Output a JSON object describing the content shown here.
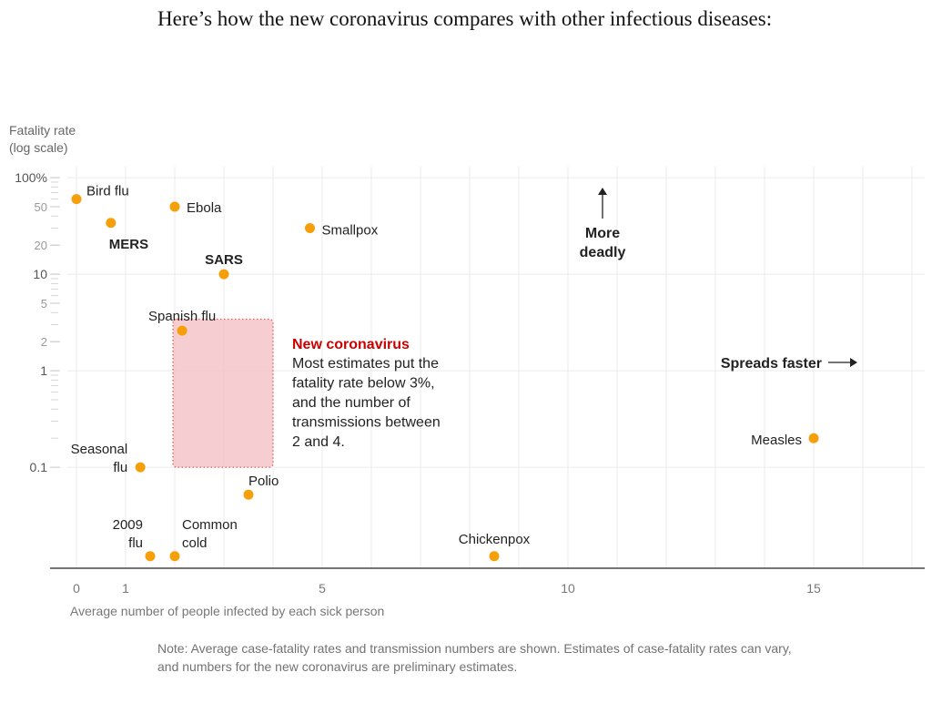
{
  "headline": "Here’s how the new coronavirus compares with other infectious diseases:",
  "note": "Note: Average case-fatality rates and transmission numbers are shown. Estimates of case-fatality rates can vary, and numbers for the new coronavirus are preliminary estimates.",
  "chart_data": {
    "type": "scatter",
    "ylabel_lines": [
      "Fatality rate",
      "(log scale)"
    ],
    "xlabel": "Average number of people infected by each sick person",
    "y_scale": "log",
    "ylim": [
      0.009,
      130
    ],
    "xlim": [
      -0.5,
      17.3
    ],
    "y_ticks": [
      {
        "value": 100,
        "label": "100%"
      },
      {
        "value": 50,
        "label": "50"
      },
      {
        "value": 20,
        "label": "20"
      },
      {
        "value": 10,
        "label": "10"
      },
      {
        "value": 5,
        "label": "5"
      },
      {
        "value": 2,
        "label": "2"
      },
      {
        "value": 1,
        "label": "1"
      },
      {
        "value": 0.1,
        "label": "0.1"
      }
    ],
    "x_ticks": [
      {
        "value": 0,
        "label": "0"
      },
      {
        "value": 1,
        "label": "1"
      },
      {
        "value": 5,
        "label": "5"
      },
      {
        "value": 10,
        "label": "10"
      },
      {
        "value": 15,
        "label": "15"
      }
    ],
    "points": [
      {
        "name": "Bird flu",
        "lines": [
          "Bird flu"
        ],
        "x": 0,
        "y": 60,
        "bold": false
      },
      {
        "name": "MERS",
        "lines": [
          "MERS"
        ],
        "x": 0.7,
        "y": 34,
        "bold": true
      },
      {
        "name": "Ebola",
        "lines": [
          "Ebola"
        ],
        "x": 2.0,
        "y": 50,
        "bold": false
      },
      {
        "name": "Smallpox",
        "lines": [
          "Smallpox"
        ],
        "x": 4.75,
        "y": 30,
        "bold": false
      },
      {
        "name": "SARS",
        "lines": [
          "SARS"
        ],
        "x": 3.0,
        "y": 10,
        "bold": true
      },
      {
        "name": "Spanish flu",
        "lines": [
          "Spanish flu"
        ],
        "x": 2.15,
        "y": 2.6,
        "bold": false
      },
      {
        "name": "Seasonal flu",
        "lines": [
          "Seasonal",
          "flu"
        ],
        "x": 1.3,
        "y": 0.1,
        "bold": false
      },
      {
        "name": "Polio",
        "lines": [
          "Polio"
        ],
        "x": 3.5,
        "y": 0.052,
        "bold": false
      },
      {
        "name": "2009 flu",
        "lines": [
          "2009",
          "flu"
        ],
        "x": 1.5,
        "y": 0.012,
        "bold": false
      },
      {
        "name": "Common cold",
        "lines": [
          "Common",
          "cold"
        ],
        "x": 2.0,
        "y": 0.012,
        "bold": false
      },
      {
        "name": "Chickenpox",
        "lines": [
          "Chickenpox"
        ],
        "x": 8.5,
        "y": 0.012,
        "bold": false
      },
      {
        "name": "Measles",
        "lines": [
          "Measles"
        ],
        "x": 15,
        "y": 0.2,
        "bold": false
      }
    ],
    "highlight": {
      "title": "New coronavirus",
      "text_lines": [
        "Most estimates put the",
        "fatality rate below 3%,",
        "and the number of",
        "transmissions between",
        "2 and 4."
      ],
      "x_range": [
        2,
        4
      ],
      "y_range": [
        0.1,
        3
      ]
    },
    "annotations": {
      "more_deadly": [
        "More",
        "deadly"
      ],
      "spreads_faster": "Spreads faster"
    },
    "colors": {
      "point": "#f5a00a",
      "highlight_fill": "#f4c5c9",
      "highlight_border": "#e06060",
      "highlight_title": "#cc0000",
      "grid": "#ebebeb",
      "axis_text": "#666666"
    }
  }
}
